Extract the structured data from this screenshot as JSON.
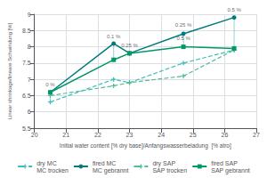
{
  "chart_data": {
    "type": "line",
    "xlabel": "Initial water content [% dry base]/Anfangswasserbeladung  [% atro]",
    "ylabel": "Linear shrinkage/lineare Schwindung [%]",
    "xlim": [
      20,
      27
    ],
    "ylim": [
      5.5,
      9.0
    ],
    "xticks": [
      20,
      21,
      22,
      23,
      24,
      25,
      26,
      27
    ],
    "yticks": [
      5.5,
      6,
      6.5,
      7,
      7.5,
      8,
      8.5,
      9
    ],
    "grid": true,
    "legend": "bottom",
    "series": [
      {
        "name": "dry MC\nMC trocken",
        "color": "#3DBDBD",
        "marker": "plus",
        "line_style": "dashed",
        "x": [
          20.5,
          22.5,
          23.0,
          24.7,
          26.3
        ],
        "values": [
          6.3,
          7.0,
          6.9,
          7.5,
          7.9
        ]
      },
      {
        "name": "fired MC\nMC gebrannt",
        "color": "#007A7A",
        "marker": "circle",
        "line_style": "solid",
        "x": [
          20.5,
          22.5,
          23.0,
          24.7,
          26.3
        ],
        "values": [
          6.6,
          8.1,
          7.8,
          8.4,
          8.9
        ]
      },
      {
        "name": "dry SAP\nSAP trocken",
        "color": "#55BB99",
        "marker": "plus",
        "line_style": "dashed",
        "x": [
          20.5,
          22.5,
          23.0,
          24.7,
          26.3
        ],
        "values": [
          6.5,
          6.8,
          6.9,
          7.1,
          7.9
        ]
      },
      {
        "name": "fired SAP\nSAP gebrannt",
        "color": "#009966",
        "marker": "square",
        "line_style": "solid",
        "x": [
          20.5,
          22.5,
          23.0,
          24.7,
          26.3
        ],
        "values": [
          6.6,
          7.6,
          7.8,
          8.0,
          7.95
        ]
      }
    ],
    "vlines": {
      "color": "#5ABABA",
      "segments": [
        {
          "x": 20.5,
          "ymin": 6.3,
          "ymax": 6.6
        },
        {
          "x": 22.5,
          "ymin": 7.6,
          "ymax": 8.1
        },
        {
          "x": 24.7,
          "ymin": 8.0,
          "ymax": 8.4
        },
        {
          "x": 26.3,
          "ymin": 7.95,
          "ymax": 8.9
        }
      ]
    },
    "annotations": [
      {
        "text": "0 %",
        "x": 20.5,
        "y": 6.72
      },
      {
        "text": "0.1 %",
        "x": 22.5,
        "y": 8.22
      },
      {
        "text": "0.25 %",
        "x": 23.0,
        "y": 7.93
      },
      {
        "text": "0.25 %",
        "x": 24.7,
        "y": 8.55
      },
      {
        "text": "0.5 %",
        "x": 24.7,
        "y": 8.14
      },
      {
        "text": "0.5 %",
        "x": 26.3,
        "y": 9.03
      }
    ]
  }
}
